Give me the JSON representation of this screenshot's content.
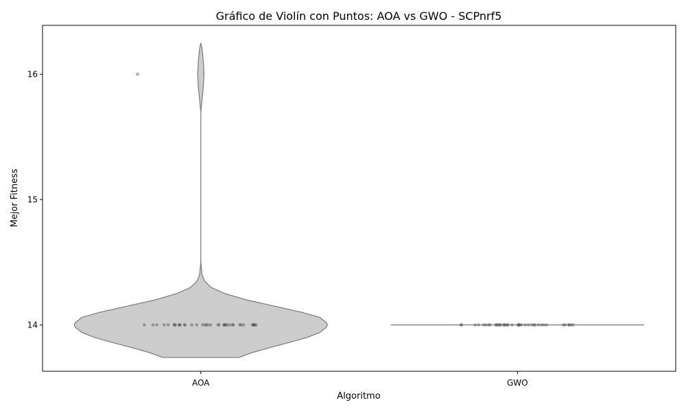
{
  "chart_data": {
    "type": "violin",
    "title": "Gráfico de Violín con Puntos: AOA vs GWO - SCPnrf5",
    "xlabel": "Algoritmo",
    "ylabel": "Mejor Fitness",
    "categories": [
      "AOA",
      "GWO"
    ],
    "yticks": [
      14,
      15,
      16
    ],
    "ylim": [
      13.63,
      16.39
    ],
    "grid": false,
    "violin": {
      "AOA": {
        "min": 13.74,
        "max": 16.25,
        "profile": [
          [
            13.74,
            0.3
          ],
          [
            13.78,
            0.41
          ],
          [
            13.82,
            0.55
          ],
          [
            13.86,
            0.7
          ],
          [
            13.9,
            0.84
          ],
          [
            13.94,
            0.94
          ],
          [
            13.98,
            0.99
          ],
          [
            14.0,
            1.0
          ],
          [
            14.02,
            0.99
          ],
          [
            14.06,
            0.94
          ],
          [
            14.1,
            0.8
          ],
          [
            14.15,
            0.58
          ],
          [
            14.2,
            0.36
          ],
          [
            14.25,
            0.19
          ],
          [
            14.3,
            0.08
          ],
          [
            14.35,
            0.03
          ],
          [
            14.4,
            0.01
          ],
          [
            14.5,
            0.0
          ],
          [
            15.0,
            0.0
          ],
          [
            15.7,
            0.0
          ],
          [
            15.8,
            0.01
          ],
          [
            15.9,
            0.02
          ],
          [
            16.0,
            0.025
          ],
          [
            16.1,
            0.02
          ],
          [
            16.2,
            0.01
          ],
          [
            16.25,
            0.0
          ]
        ]
      },
      "GWO": {
        "min": 14.0,
        "max": 14.0
      }
    },
    "points": {
      "AOA": [
        16,
        14,
        14,
        14,
        14,
        14,
        14,
        14,
        14,
        14,
        14,
        14,
        14,
        14,
        14,
        14,
        14,
        14,
        14,
        14,
        14,
        14,
        14,
        14,
        14,
        14,
        14,
        14,
        14,
        14,
        14,
        14,
        14,
        14,
        14,
        14,
        14,
        14,
        14,
        14
      ],
      "GWO": [
        14,
        14,
        14,
        14,
        14,
        14,
        14,
        14,
        14,
        14,
        14,
        14,
        14,
        14,
        14,
        14,
        14,
        14,
        14,
        14,
        14,
        14,
        14,
        14,
        14,
        14,
        14,
        14,
        14,
        14,
        14,
        14,
        14,
        14,
        14,
        14,
        14,
        14,
        14,
        14
      ]
    },
    "colors": {
      "violin_fill": "#cccccc",
      "violin_edge": "#808080",
      "point": "#555555"
    }
  }
}
